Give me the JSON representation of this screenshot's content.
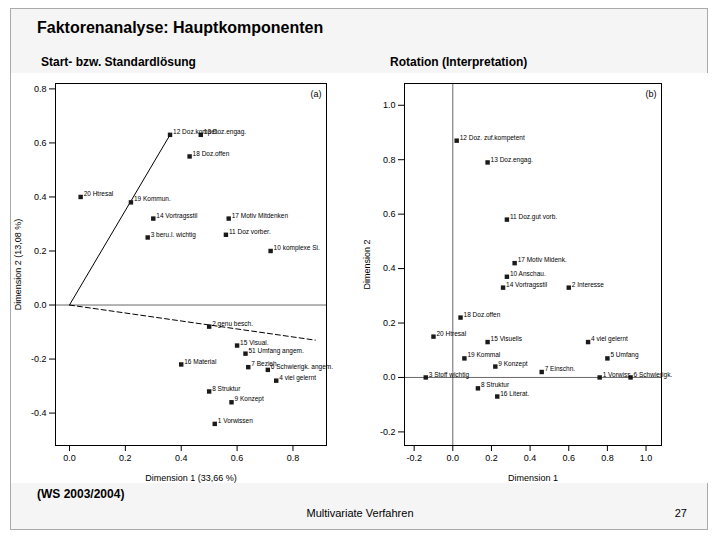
{
  "title": "Faktorenanalyse: Hauptkomponenten",
  "annotations": [
    "(WS 2003/2004)",
    "Multivariate Verfahren",
    "27"
  ],
  "chart_data": [
    {
      "type": "scatter",
      "subtitle": "Start- bzw. Standardlösung",
      "annotations": [
        "(a)"
      ],
      "x_label": "Dimension 1 (33,66 %)",
      "y_label": "Dimension 2 (13,08 %)",
      "xlim": [
        -0.05,
        0.92
      ],
      "ylim": [
        -0.52,
        0.82
      ],
      "xticks": [
        {
          "value": 0.0,
          "label": "0.0"
        },
        0.2,
        0.4,
        0.6,
        0.8
      ],
      "yticks": [
        -0.4,
        -0.2,
        {
          "value": 0.0,
          "label": "0.0"
        },
        0.2,
        0.4,
        0.6,
        0.8
      ],
      "marker": "square",
      "color": "#1a1a1a",
      "grid": false,
      "hlines": [
        0
      ],
      "vlines": [],
      "lines": [
        {
          "x": [
            0,
            0.36
          ],
          "y": [
            0,
            0.63
          ],
          "line_style": "solid",
          "color": "#000000"
        },
        {
          "x": [
            0,
            0.88
          ],
          "y": [
            0,
            -0.13
          ],
          "line_style": "dashed",
          "color": "#000000"
        }
      ],
      "x": [
        0.36,
        0.47,
        0.43,
        0.04,
        0.22,
        0.3,
        0.28,
        0.57,
        0.56,
        0.72,
        0.5,
        0.6,
        0.63,
        0.4,
        0.64,
        0.71,
        0.74,
        0.5,
        0.58,
        0.52
      ],
      "y": [
        0.63,
        0.63,
        0.55,
        0.4,
        0.38,
        0.32,
        0.25,
        0.32,
        0.26,
        0.2,
        -0.08,
        -0.15,
        -0.18,
        -0.22,
        -0.23,
        -0.24,
        -0.28,
        -0.32,
        -0.36,
        -0.44
      ],
      "labels": [
        "12 Doz.kompet.",
        "13 Doz.engag.",
        "18 Doz.offen",
        "20 Htresal",
        "19 Kommun.",
        "14 Vortragsstil",
        "3 beru.l. wichtig",
        "17 Motiv Mitdenken",
        "11 Doz vorber.",
        "10 komplexe Si.",
        "2 genu besch.",
        "15 Visual.",
        "51 Umfang angem.",
        "16 Material",
        "7 Bezieh.",
        "6 Schwierigk. angem.",
        "4 viel gelernt",
        "8 Struktur",
        "9 Konzept",
        "1 Vorwissen"
      ]
    },
    {
      "type": "scatter",
      "subtitle": "Rotation (Interpretation)",
      "annotations": [
        "(b)"
      ],
      "x_label": "Dimension 1",
      "y_label": "Dimension 2",
      "xlim": [
        -0.25,
        1.08
      ],
      "ylim": [
        -0.25,
        1.08
      ],
      "xticks": [
        -0.2,
        {
          "value": 0.0,
          "label": "0.0"
        },
        0.2,
        0.4,
        0.6,
        0.8,
        {
          "value": 1.0,
          "label": "1.0"
        }
      ],
      "yticks": [
        -0.2,
        {
          "value": 0.0,
          "label": "0.0"
        },
        0.2,
        0.4,
        0.6,
        0.8,
        {
          "value": 1.0,
          "label": "1.0"
        }
      ],
      "marker": "square",
      "color": "#1a1a1a",
      "grid": false,
      "hlines": [
        0
      ],
      "vlines": [
        0
      ],
      "lines": [],
      "x": [
        0.02,
        0.18,
        0.28,
        0.32,
        0.28,
        0.26,
        0.6,
        0.04,
        -0.1,
        0.18,
        0.7,
        0.06,
        0.22,
        0.46,
        0.8,
        0.76,
        0.92,
        -0.14,
        0.13,
        0.23
      ],
      "y": [
        0.87,
        0.79,
        0.58,
        0.42,
        0.37,
        0.33,
        0.33,
        0.22,
        0.15,
        0.13,
        0.13,
        0.07,
        0.04,
        0.02,
        0.07,
        0.0,
        0.0,
        0.0,
        -0.04,
        -0.07
      ],
      "labels": [
        "12 Doz. zuf.kompetent",
        "13 Doz.engag.",
        "11 Doz.gut vorb.",
        "17 Motiv Midenk.",
        "10 Anschau.",
        "14 Vortragsstil",
        "2 Interesse",
        "18 Doz.offen",
        "20 Htresal",
        "15 Visuells",
        "4 viel gelernt",
        "19 Kommal",
        "9 Konzept",
        "7 Einschn.",
        "5 Umfang",
        "1 Vorwiss.",
        "6 Schwierigk.",
        "3 Stoff wichtig",
        "8 Struktur",
        "16 Literat."
      ]
    }
  ]
}
